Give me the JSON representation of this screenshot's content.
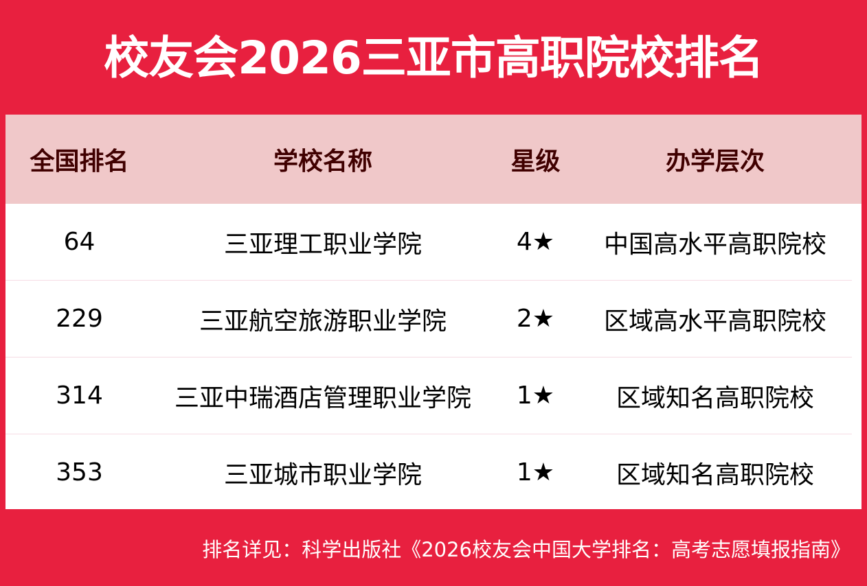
{
  "title": "校友会2026三亚市高职院校排名",
  "table": {
    "headers": [
      "全国排名",
      "学校名称",
      "星级",
      "办学层次"
    ],
    "rows": [
      [
        "64",
        "三亚理工职业学院",
        "4★",
        "中国高水平高职院校"
      ],
      [
        "229",
        "三亚航空旅游职业学院",
        "2★",
        "区域高水平高职院校"
      ],
      [
        "314",
        "三亚中瑞酒店管理职业学院",
        "1★",
        "区域知名高职院校"
      ],
      [
        "353",
        "三亚城市职业学院",
        "1★",
        "区域知名高职院校"
      ]
    ]
  },
  "footer": "排名详见：科学出版社《2026校友会中国大学排名：高考志愿填报指南》",
  "colors": {
    "background": "#e8203f",
    "header_bg": "#f0c8c9",
    "header_text": "#400000"
  }
}
